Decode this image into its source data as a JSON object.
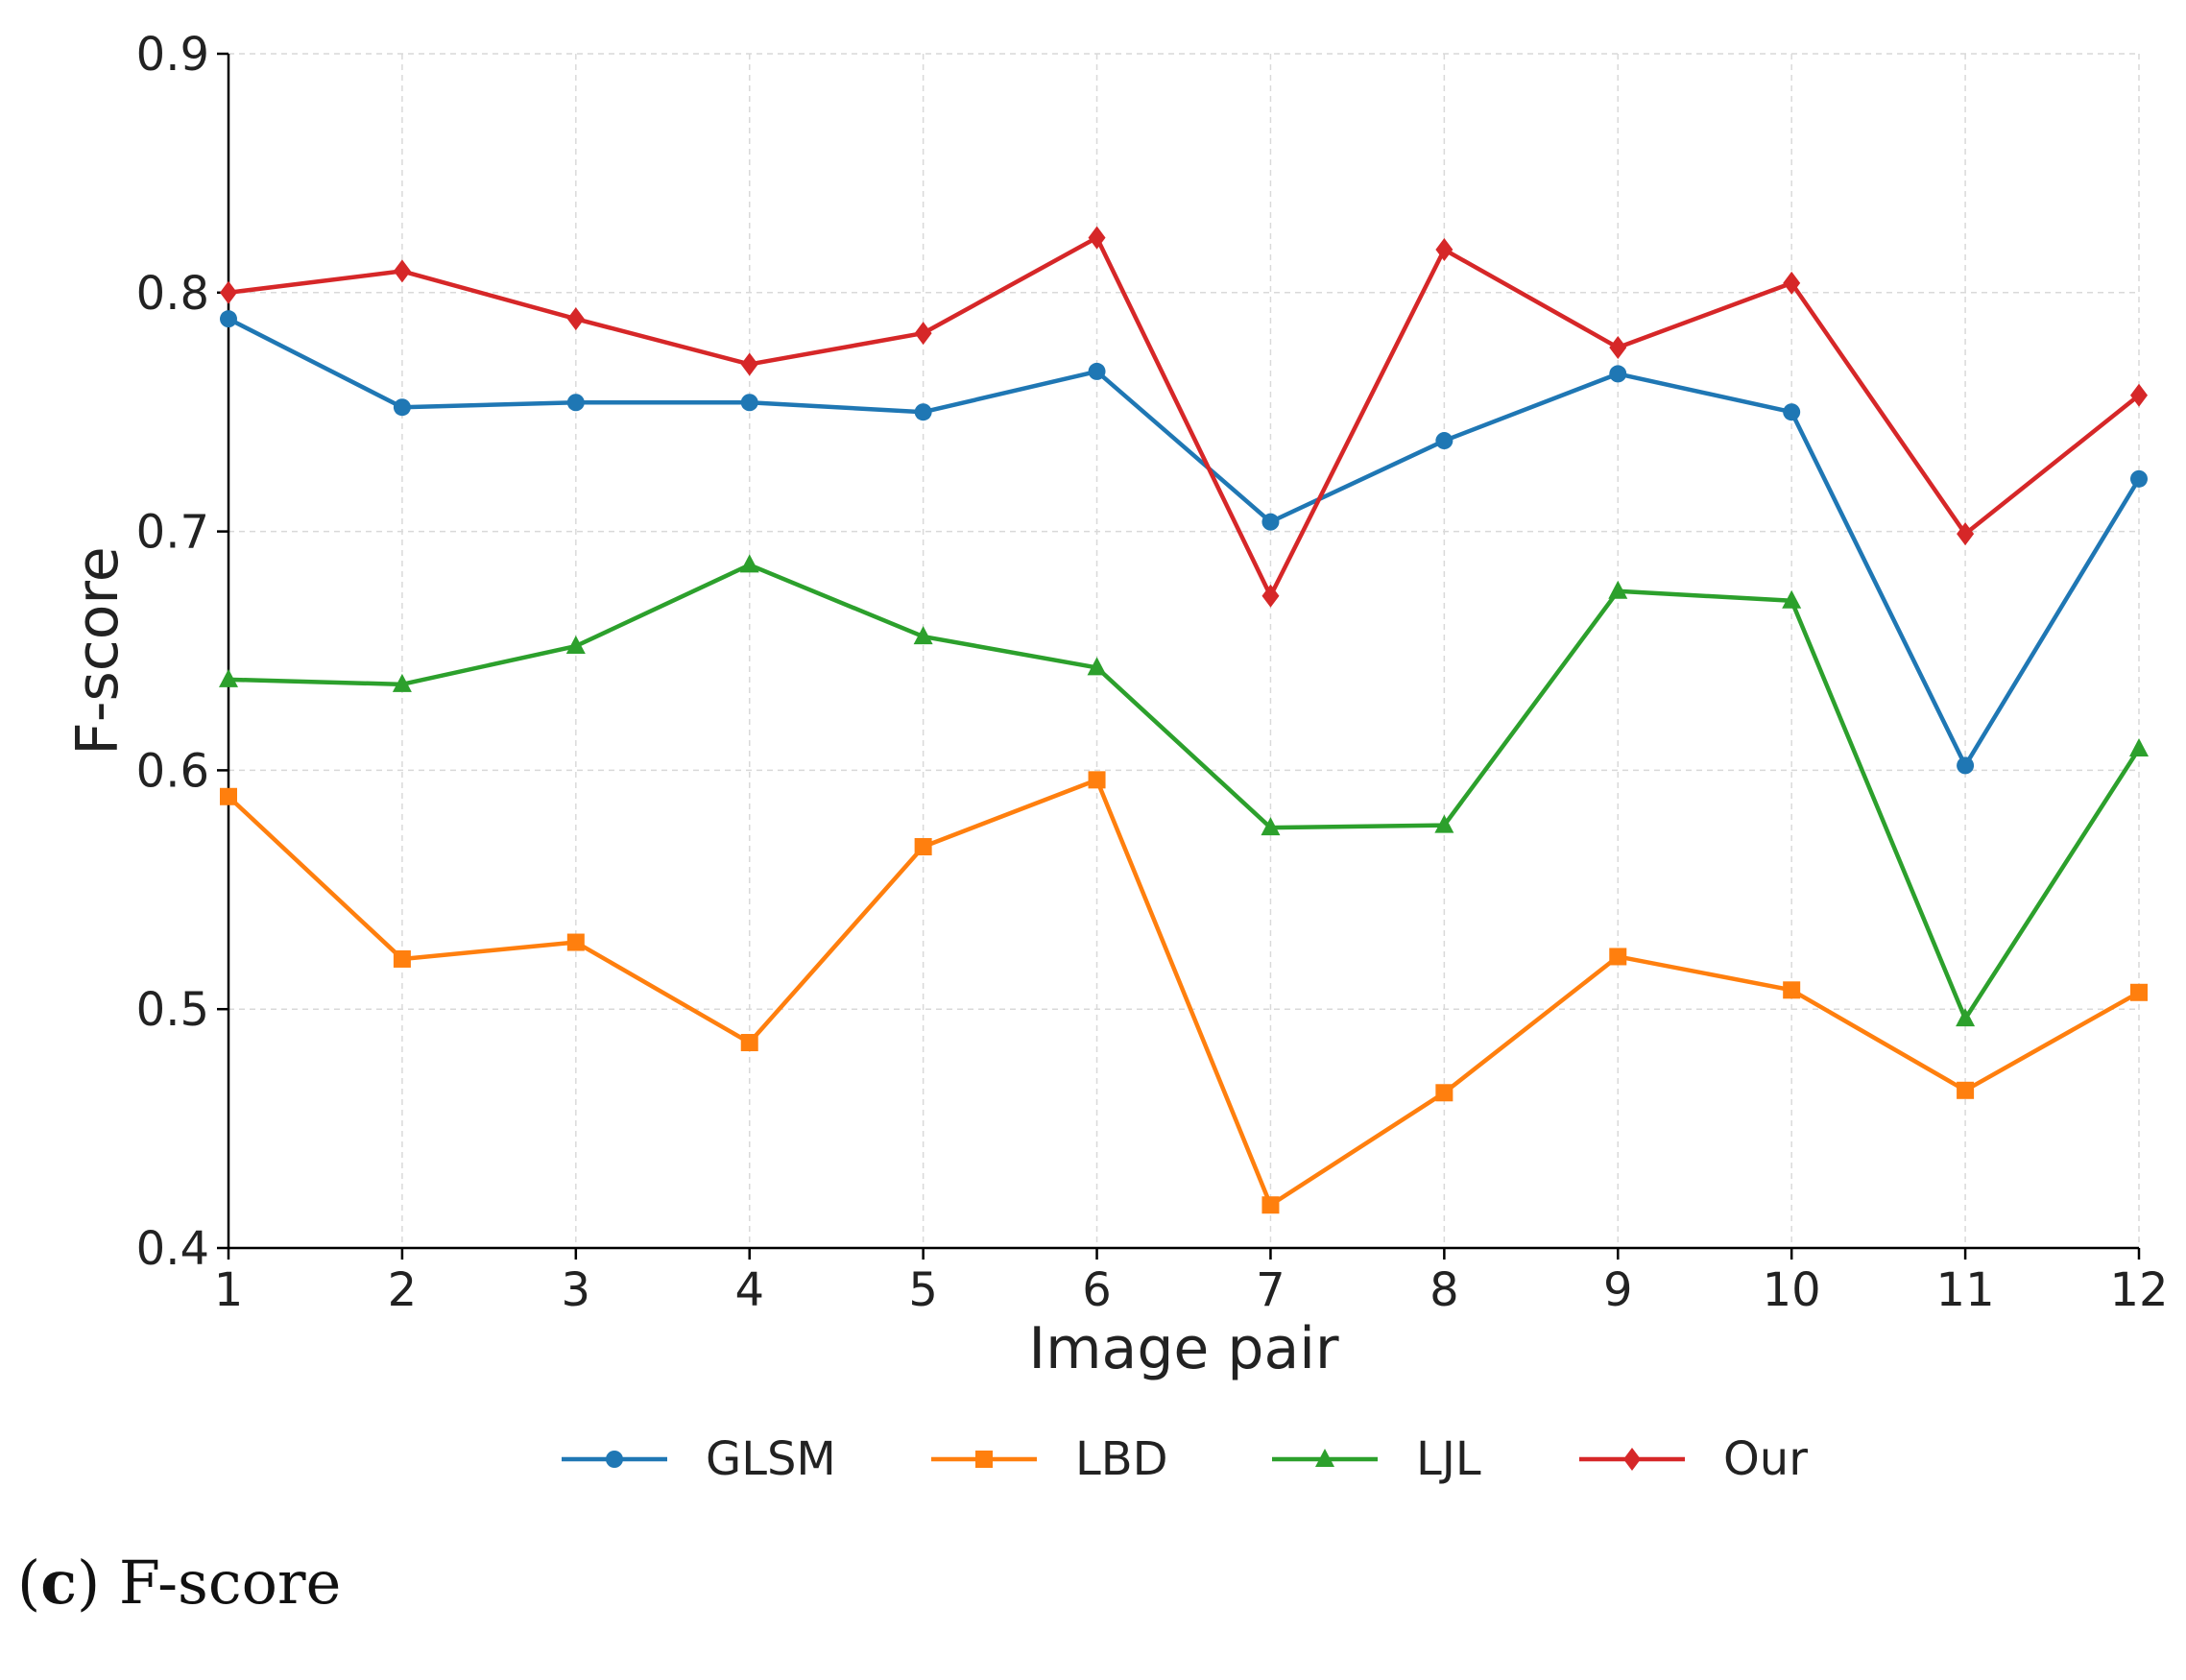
{
  "chart_data": {
    "type": "line",
    "xlabel": "Image pair",
    "ylabel": "F-score",
    "x": [
      1,
      2,
      3,
      4,
      5,
      6,
      7,
      8,
      9,
      10,
      11,
      12
    ],
    "xticks": [
      "1",
      "2",
      "3",
      "4",
      "5",
      "6",
      "7",
      "8",
      "9",
      "10",
      "11",
      "12"
    ],
    "xlim": [
      1,
      12
    ],
    "ylim": [
      0.4,
      0.9
    ],
    "yticks": [
      "0.4",
      "0.5",
      "0.6",
      "0.7",
      "0.8",
      "0.9"
    ],
    "grid": true,
    "legend_position": "bottom",
    "series": [
      {
        "name": "GLSM",
        "color": "#1f77b4",
        "marker": "circle",
        "values": [
          0.789,
          0.752,
          0.754,
          0.754,
          0.75,
          0.767,
          0.704,
          0.738,
          0.766,
          0.75,
          0.602,
          0.722
        ]
      },
      {
        "name": "LBD",
        "color": "#ff7f0e",
        "marker": "square",
        "values": [
          0.589,
          0.521,
          0.528,
          0.486,
          0.568,
          0.596,
          0.418,
          0.465,
          0.522,
          0.508,
          0.466,
          0.507
        ]
      },
      {
        "name": "LJL",
        "color": "#2ca02c",
        "marker": "triangle",
        "values": [
          0.638,
          0.636,
          0.652,
          0.686,
          0.656,
          0.643,
          0.576,
          0.577,
          0.675,
          0.671,
          0.496,
          0.609
        ]
      },
      {
        "name": "Our",
        "color": "#d62728",
        "marker": "diamond",
        "values": [
          0.8,
          0.809,
          0.789,
          0.77,
          0.783,
          0.823,
          0.673,
          0.818,
          0.777,
          0.804,
          0.699,
          0.757
        ]
      }
    ]
  },
  "caption": {
    "label": "c",
    "text": "F-score"
  }
}
